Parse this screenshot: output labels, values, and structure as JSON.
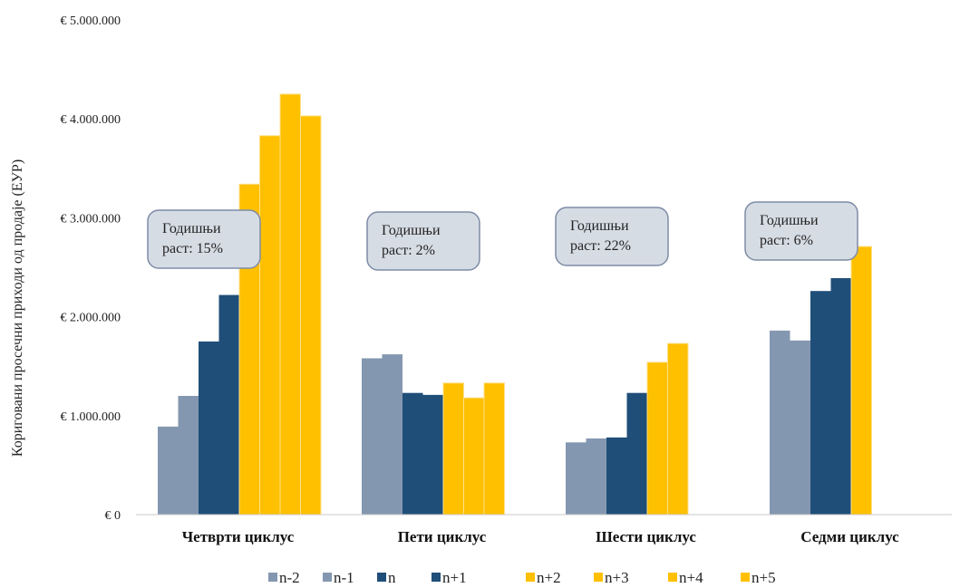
{
  "chart_data": {
    "type": "bar",
    "title": "",
    "ylabel": "Кориговани просечни приходи од продаје (ЕУР)",
    "ylim": [
      0,
      5000000
    ],
    "y_ticks": [
      0,
      1000000,
      2000000,
      3000000,
      4000000,
      5000000
    ],
    "y_tick_labels": [
      "€ 0",
      "€ 1.000.000",
      "€ 2.000.000",
      "€ 3.000.000",
      "€ 4.000.000",
      "€ 5.000.000"
    ],
    "grid": false,
    "legend_position": "bottom",
    "categories": [
      "Четврти циклус",
      "Пети циклус",
      "Шести циклус",
      "Седми циклус"
    ],
    "series": [
      {
        "name": "n-2",
        "color": "#8497b0",
        "values": [
          890000,
          1580000,
          730000,
          1860000
        ]
      },
      {
        "name": "n-1",
        "color": "#8497b0",
        "values": [
          1200000,
          1620000,
          770000,
          1760000
        ]
      },
      {
        "name": "n",
        "color": "#1f4e79",
        "values": [
          1750000,
          1230000,
          780000,
          2260000
        ]
      },
      {
        "name": "n+1",
        "color": "#1f4e79",
        "values": [
          2220000,
          1210000,
          1230000,
          2390000
        ]
      },
      {
        "name": "n+2",
        "color": "#ffc000",
        "values": [
          3340000,
          1330000,
          1540000,
          2710000
        ]
      },
      {
        "name": "n+3",
        "color": "#ffc000",
        "values": [
          3830000,
          1180000,
          1730000,
          null
        ]
      },
      {
        "name": "n+4",
        "color": "#ffc000",
        "values": [
          4250000,
          1330000,
          null,
          null
        ]
      },
      {
        "name": "n+5",
        "color": "#ffc000",
        "values": [
          4030000,
          null,
          null,
          null
        ]
      }
    ],
    "annotations": [
      {
        "line1": "Годишњи",
        "line2": "раст: 15%"
      },
      {
        "line1": "Годишњи",
        "line2": "раст: 2%"
      },
      {
        "line1": "Годишњи",
        "line2": "раст: 22%"
      },
      {
        "line1": "Годишњи",
        "line2": "раст: 6%"
      }
    ]
  }
}
